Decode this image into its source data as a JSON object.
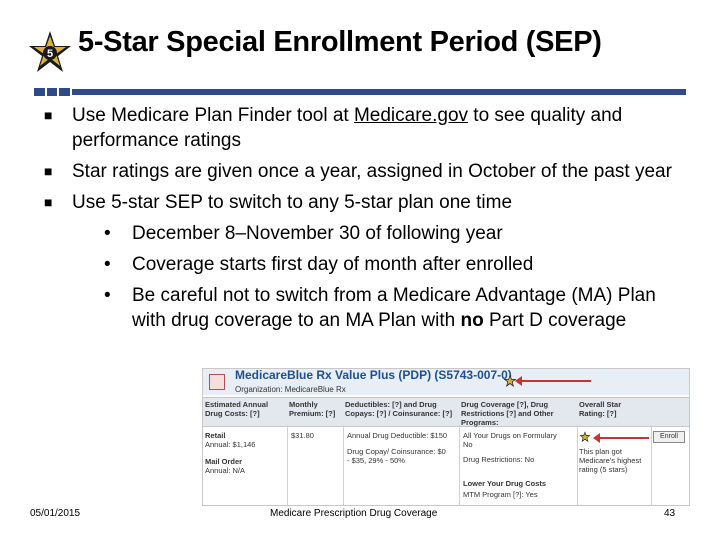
{
  "title": "5-Star Special Enrollment Period (SEP)",
  "star_logo_number": "5",
  "bullets": [
    {
      "before": "Use Medicare Plan Finder tool at ",
      "link": "Medicare.gov",
      "after": " to see quality and performance ratings"
    },
    {
      "text": "Star ratings are given once a year, assigned in October of the past year"
    },
    {
      "text": "Use 5-star SEP to switch to any 5-star plan one time"
    }
  ],
  "sub_bullets": [
    {
      "text": "December 8–November 30 of following year"
    },
    {
      "text": "Coverage starts first day of month after enrolled"
    },
    {
      "before": "Be careful not to switch from a Medicare Advantage (MA) Plan with drug coverage to an MA Plan with ",
      "bold": "no",
      "after": " Part D coverage"
    }
  ],
  "plan_finder": {
    "plan_name": "MedicareBlue Rx Value Plus (PDP) (S5743-007-0)",
    "organization": "Organization: MedicareBlue Rx",
    "columns": [
      "Estimated Annual Drug Costs: [?]",
      "Monthly Premium: [?]",
      "Deductibles: [?] and Drug Copays: [?] / Coinsurance: [?]",
      "Drug Coverage [?], Drug Restrictions [?] and Other Programs:",
      "Overall Star Rating: [?]"
    ],
    "retail_label": "Retail",
    "retail_annual": "Annual: $1,146",
    "mail_label": "Mail Order",
    "mail_annual": "Annual: N/A",
    "premium": "$31.80",
    "deductible": "Annual Drug Deductible: $150",
    "copay": "Drug Copay/ Coinsurance: $0 - $35, 29% - 50%",
    "formulary": "All Your Drugs on Formulary",
    "formulary_value": "No",
    "restrictions": "Drug Restrictions: No",
    "lower_costs": "Lower Your Drug Costs",
    "mtm": "MTM Program [?]: Yes",
    "rating_note": "This plan got Medicare's highest rating (5 stars)",
    "enroll_label": "Enroll"
  },
  "footer": {
    "date": "05/01/2015",
    "center": "Medicare Prescription Drug Coverage",
    "page": "43"
  }
}
